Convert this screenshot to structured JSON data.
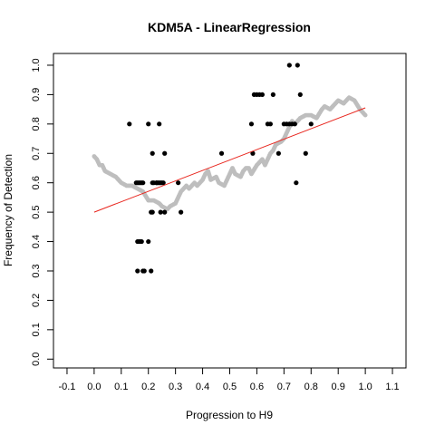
{
  "chart_data": {
    "type": "scatter",
    "title": "KDM5A - LinearRegression",
    "xlabel": "Progression to H9",
    "ylabel": "Frequency of Detection",
    "xlim": [
      -0.15,
      1.15
    ],
    "ylim": [
      -0.03,
      1.04
    ],
    "x_ticks": [
      "-0.1",
      "0.0",
      "0.1",
      "0.2",
      "0.3",
      "0.4",
      "0.5",
      "0.6",
      "0.7",
      "0.8",
      "0.9",
      "1.0",
      "1.1"
    ],
    "y_ticks": [
      "0.0",
      "0.1",
      "0.2",
      "0.3",
      "0.4",
      "0.5",
      "0.6",
      "0.7",
      "0.8",
      "0.9",
      "1.0"
    ],
    "grid": false,
    "legend": "none",
    "colors": {
      "points": "#000000",
      "smooth": "#bebebe",
      "regression": "#e8251d"
    },
    "series": [
      {
        "role": "observed",
        "style": "points",
        "x": [
          0.13,
          0.155,
          0.16,
          0.165,
          0.17,
          0.175,
          0.18,
          0.16,
          0.165,
          0.17,
          0.175,
          0.185,
          0.16,
          0.18,
          0.2,
          0.21,
          0.215,
          0.22,
          0.23,
          0.235,
          0.24,
          0.245,
          0.25,
          0.255,
          0.26,
          0.2,
          0.215,
          0.21,
          0.24,
          0.26,
          0.215,
          0.23,
          0.245,
          0.31,
          0.32,
          0.47,
          0.58,
          0.59,
          0.6,
          0.61,
          0.62,
          0.64,
          0.65,
          0.66,
          0.585,
          0.68,
          0.7,
          0.71,
          0.72,
          0.73,
          0.75,
          0.72,
          0.745,
          0.76,
          0.78,
          0.8,
          0.74
        ],
        "y": [
          0.8,
          0.6,
          0.6,
          0.6,
          0.6,
          0.6,
          0.6,
          0.4,
          0.4,
          0.4,
          0.4,
          0.3,
          0.3,
          0.3,
          0.4,
          0.3,
          0.6,
          0.6,
          0.6,
          0.6,
          0.6,
          0.6,
          0.6,
          0.6,
          0.7,
          0.8,
          0.7,
          0.5,
          0.8,
          0.5,
          0.5,
          0.6,
          0.5,
          0.6,
          0.5,
          0.7,
          0.8,
          0.9,
          0.9,
          0.9,
          0.9,
          0.8,
          0.8,
          0.9,
          0.7,
          0.7,
          0.8,
          0.8,
          1.0,
          0.8,
          1.0,
          0.8,
          0.6,
          0.9,
          0.7,
          0.8,
          0.8
        ]
      },
      {
        "role": "smoothed",
        "style": "line",
        "x": [
          0.0,
          0.01,
          0.02,
          0.03,
          0.04,
          0.06,
          0.08,
          0.1,
          0.12,
          0.14,
          0.16,
          0.18,
          0.2,
          0.22,
          0.24,
          0.25,
          0.27,
          0.28,
          0.3,
          0.32,
          0.34,
          0.35,
          0.37,
          0.38,
          0.4,
          0.41,
          0.42,
          0.43,
          0.45,
          0.46,
          0.48,
          0.49,
          0.5,
          0.51,
          0.52,
          0.54,
          0.55,
          0.56,
          0.57,
          0.58,
          0.6,
          0.61,
          0.62,
          0.63,
          0.65,
          0.66,
          0.67,
          0.69,
          0.7,
          0.71,
          0.72,
          0.73,
          0.74,
          0.76,
          0.78,
          0.8,
          0.82,
          0.84,
          0.85,
          0.87,
          0.88,
          0.9,
          0.92,
          0.94,
          0.96,
          0.98,
          1.0
        ],
        "y": [
          0.69,
          0.68,
          0.66,
          0.66,
          0.64,
          0.63,
          0.62,
          0.6,
          0.59,
          0.59,
          0.58,
          0.57,
          0.54,
          0.54,
          0.53,
          0.52,
          0.51,
          0.52,
          0.53,
          0.57,
          0.59,
          0.58,
          0.6,
          0.59,
          0.61,
          0.63,
          0.64,
          0.61,
          0.62,
          0.6,
          0.59,
          0.61,
          0.63,
          0.65,
          0.63,
          0.62,
          0.64,
          0.65,
          0.65,
          0.63,
          0.66,
          0.67,
          0.68,
          0.66,
          0.7,
          0.71,
          0.73,
          0.74,
          0.75,
          0.77,
          0.79,
          0.81,
          0.8,
          0.82,
          0.83,
          0.83,
          0.82,
          0.85,
          0.86,
          0.85,
          0.86,
          0.88,
          0.87,
          0.89,
          0.88,
          0.85,
          0.83
        ]
      },
      {
        "role": "fit",
        "style": "line",
        "x": [
          0.0,
          1.0
        ],
        "y": [
          0.5,
          0.855
        ]
      }
    ]
  }
}
